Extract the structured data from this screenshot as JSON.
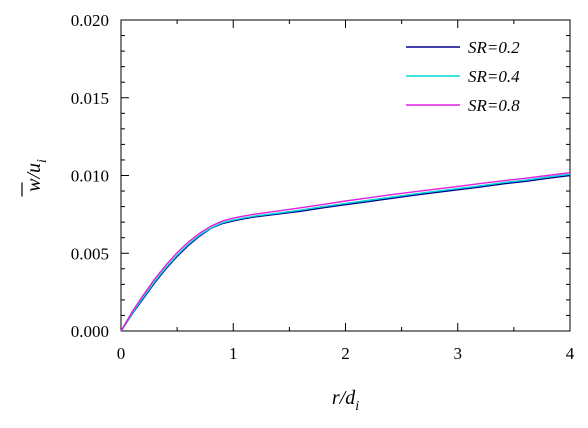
{
  "chart_data": {
    "type": "line",
    "title": "",
    "xlabel": {
      "main": "r/d",
      "sub": "i"
    },
    "ylabel": {
      "main": "w/u",
      "sub": "i",
      "overbar": "w"
    },
    "xlim": [
      0,
      4
    ],
    "ylim": [
      0,
      0.02
    ],
    "x_ticks": [
      0,
      1,
      2,
      3,
      4
    ],
    "x_tick_labels": [
      "0",
      "1",
      "2",
      "3",
      "4"
    ],
    "y_ticks": [
      0,
      0.005,
      0.01,
      0.015,
      0.02
    ],
    "y_tick_labels": [
      "0.000",
      "0.005",
      "0.010",
      "0.015",
      "0.020"
    ],
    "grid": false,
    "legend_position": "top-right",
    "series": [
      {
        "name": "SR=0.2",
        "color": "#00008B",
        "x": [
          0,
          0.1,
          0.2,
          0.3,
          0.4,
          0.5,
          0.6,
          0.7,
          0.8,
          0.9,
          1.0,
          1.1,
          1.2,
          1.4,
          1.6,
          1.8,
          2.0,
          2.2,
          2.4,
          2.6,
          2.8,
          3.0,
          3.2,
          3.4,
          3.6,
          3.8,
          4.0
        ],
        "y": [
          0,
          0.0011,
          0.0021,
          0.0031,
          0.004,
          0.0048,
          0.0055,
          0.0061,
          0.0066,
          0.0069,
          0.00708,
          0.00722,
          0.00734,
          0.00752,
          0.0077,
          0.00792,
          0.00812,
          0.00832,
          0.00852,
          0.00872,
          0.0089,
          0.00908,
          0.00926,
          0.00946,
          0.00962,
          0.00982,
          0.01
        ]
      },
      {
        "name": "SR=0.4",
        "color": "#00D8D8",
        "x": [
          0,
          0.1,
          0.2,
          0.3,
          0.4,
          0.5,
          0.6,
          0.7,
          0.8,
          0.9,
          1.0,
          1.1,
          1.2,
          1.4,
          1.6,
          1.8,
          2.0,
          2.2,
          2.4,
          2.6,
          2.8,
          3.0,
          3.2,
          3.4,
          3.6,
          3.8,
          4.0
        ],
        "y": [
          0,
          0.00115,
          0.00218,
          0.00318,
          0.00408,
          0.00488,
          0.00558,
          0.00616,
          0.00662,
          0.00695,
          0.00714,
          0.00728,
          0.0074,
          0.00758,
          0.00778,
          0.008,
          0.0082,
          0.0084,
          0.0086,
          0.0088,
          0.00898,
          0.00916,
          0.00934,
          0.00954,
          0.0097,
          0.0099,
          0.01008
        ]
      },
      {
        "name": "SR=0.8",
        "color": "#E020E0",
        "x": [
          0,
          0.1,
          0.2,
          0.3,
          0.4,
          0.5,
          0.6,
          0.7,
          0.8,
          0.9,
          1.0,
          1.1,
          1.2,
          1.4,
          1.6,
          1.8,
          2.0,
          2.2,
          2.4,
          2.6,
          2.8,
          3.0,
          3.2,
          3.4,
          3.6,
          3.8,
          4.0
        ],
        "y": [
          0,
          0.00125,
          0.00232,
          0.00334,
          0.00424,
          0.00504,
          0.00572,
          0.00628,
          0.00674,
          0.00706,
          0.00726,
          0.0074,
          0.00752,
          0.00772,
          0.00792,
          0.00814,
          0.00836,
          0.00856,
          0.00876,
          0.00894,
          0.00912,
          0.0093,
          0.00948,
          0.00966,
          0.00982,
          0.01,
          0.01018
        ]
      }
    ]
  }
}
